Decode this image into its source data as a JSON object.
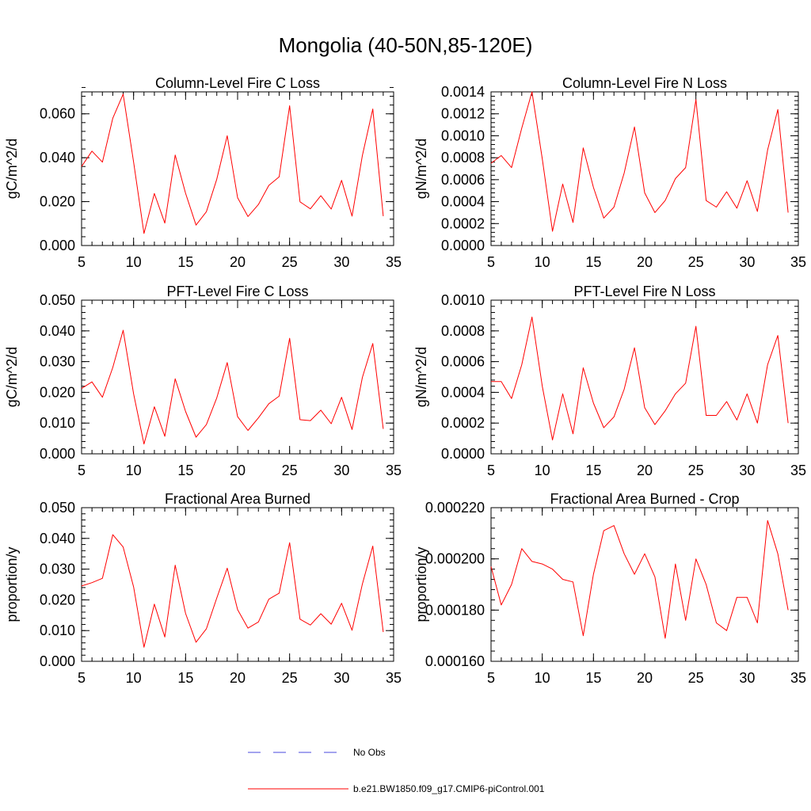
{
  "figure": {
    "title": "Mongolia (40-50N,85-120E)",
    "colors": {
      "series": "#ff0000",
      "obs": "#4a4adf",
      "axis": "#000000"
    }
  },
  "legend": {
    "items": [
      {
        "label": "No Obs",
        "style": "dashed",
        "color": "#4a4adf"
      },
      {
        "label": "b.e21.BW1850.f09_g17.CMIP6-piControl.001",
        "style": "solid",
        "color": "#ff0000"
      }
    ]
  },
  "chart_data": [
    {
      "type": "line",
      "title": "Column-Level Fire C Loss",
      "ylabel": "gC/m^2/d",
      "xlim": [
        5,
        35
      ],
      "ylim": [
        0,
        0.07
      ],
      "xticks": [
        5,
        10,
        15,
        20,
        25,
        30,
        35
      ],
      "xtick_labels": [
        "5",
        "10",
        "15",
        "20",
        "25",
        "30",
        "35"
      ],
      "yticks": [
        0,
        0.02,
        0.04,
        0.06
      ],
      "ytick_labels": [
        "0.000",
        "0.020",
        "0.040",
        "0.060"
      ],
      "y_minor_step": 0.004,
      "x": [
        5,
        6,
        7,
        8,
        9,
        10,
        11,
        12,
        13,
        14,
        15,
        16,
        17,
        18,
        19,
        20,
        21,
        22,
        23,
        24,
        25,
        26,
        27,
        28,
        29,
        30,
        31,
        32,
        33,
        34
      ],
      "series": [
        {
          "values": [
            0.036,
            0.043,
            0.038,
            0.058,
            0.069,
            0.038,
            0.0055,
            0.0237,
            0.0102,
            0.0412,
            0.0238,
            0.0093,
            0.0154,
            0.0302,
            0.05,
            0.0218,
            0.0132,
            0.0187,
            0.0274,
            0.0313,
            0.0637,
            0.0199,
            0.0167,
            0.0227,
            0.0166,
            0.0297,
            0.0134,
            0.0411,
            0.0622,
            0.0134
          ]
        }
      ]
    },
    {
      "type": "line",
      "title": "Column-Level Fire N Loss",
      "ylabel": "gN/m^2/d",
      "xlim": [
        5,
        35
      ],
      "ylim": [
        0,
        0.0014
      ],
      "xticks": [
        5,
        10,
        15,
        20,
        25,
        30,
        35
      ],
      "xtick_labels": [
        "5",
        "10",
        "15",
        "20",
        "25",
        "30",
        "35"
      ],
      "yticks": [
        0,
        0.0002,
        0.0004,
        0.0006,
        0.0008,
        0.001,
        0.0012,
        0.0014
      ],
      "ytick_labels": [
        "0.0000",
        "0.0002",
        "0.0004",
        "0.0006",
        "0.0008",
        "0.0010",
        "0.0012",
        "0.0014"
      ],
      "y_minor_step": 4e-05,
      "x": [
        5,
        6,
        7,
        8,
        9,
        10,
        11,
        12,
        13,
        14,
        15,
        16,
        17,
        18,
        19,
        20,
        21,
        22,
        23,
        24,
        25,
        26,
        27,
        28,
        29,
        30,
        31,
        32,
        33,
        34
      ],
      "series": [
        {
          "values": [
            0.00075,
            0.00082,
            0.00071,
            0.00107,
            0.0014,
            0.00079,
            0.00013,
            0.00056,
            0.00021,
            0.00089,
            0.00053,
            0.00025,
            0.00035,
            0.00066,
            0.00108,
            0.00048,
            0.0003,
            0.00041,
            0.00061,
            0.00071,
            0.00133,
            0.00041,
            0.00035,
            0.00049,
            0.00034,
            0.00059,
            0.00031,
            0.00087,
            0.00124,
            0.0003
          ]
        }
      ]
    },
    {
      "type": "line",
      "title": "PFT-Level Fire C Loss",
      "ylabel": "gC/m^2/d",
      "xlim": [
        5,
        35
      ],
      "ylim": [
        0,
        0.05
      ],
      "xticks": [
        5,
        10,
        15,
        20,
        25,
        30,
        35
      ],
      "xtick_labels": [
        "5",
        "10",
        "15",
        "20",
        "25",
        "30",
        "35"
      ],
      "yticks": [
        0,
        0.01,
        0.02,
        0.03,
        0.04,
        0.05
      ],
      "ytick_labels": [
        "0.000",
        "0.010",
        "0.020",
        "0.030",
        "0.040",
        "0.050"
      ],
      "y_minor_step": 0.002,
      "x": [
        5,
        6,
        7,
        8,
        9,
        10,
        11,
        12,
        13,
        14,
        15,
        16,
        17,
        18,
        19,
        20,
        21,
        22,
        23,
        24,
        25,
        26,
        27,
        28,
        29,
        30,
        31,
        32,
        33,
        34
      ],
      "series": [
        {
          "values": [
            0.0213,
            0.0234,
            0.0184,
            0.0281,
            0.0402,
            0.0195,
            0.0032,
            0.0153,
            0.0057,
            0.0244,
            0.0138,
            0.0054,
            0.0095,
            0.0182,
            0.0297,
            0.0121,
            0.0076,
            0.0117,
            0.0163,
            0.0188,
            0.0376,
            0.0111,
            0.0108,
            0.0142,
            0.0098,
            0.0184,
            0.0079,
            0.0249,
            0.0359,
            0.0081
          ]
        }
      ]
    },
    {
      "type": "line",
      "title": "PFT-Level Fire N Loss",
      "ylabel": "gN/m^2/d",
      "xlim": [
        5,
        35
      ],
      "ylim": [
        0,
        0.001
      ],
      "xticks": [
        5,
        10,
        15,
        20,
        25,
        30,
        35
      ],
      "xtick_labels": [
        "5",
        "10",
        "15",
        "20",
        "25",
        "30",
        "35"
      ],
      "yticks": [
        0,
        0.0002,
        0.0004,
        0.0006,
        0.0008,
        0.001
      ],
      "ytick_labels": [
        "0.0000",
        "0.0002",
        "0.0004",
        "0.0006",
        "0.0008",
        "0.0010"
      ],
      "y_minor_step": 4e-05,
      "x": [
        5,
        6,
        7,
        8,
        9,
        10,
        11,
        12,
        13,
        14,
        15,
        16,
        17,
        18,
        19,
        20,
        21,
        22,
        23,
        24,
        25,
        26,
        27,
        28,
        29,
        30,
        31,
        32,
        33,
        34
      ],
      "series": [
        {
          "values": [
            0.00047,
            0.00047,
            0.00036,
            0.00058,
            0.00089,
            0.00044,
            9e-05,
            0.00039,
            0.00013,
            0.00056,
            0.00033,
            0.00017,
            0.00024,
            0.00042,
            0.00069,
            0.0003,
            0.00019,
            0.00028,
            0.00039,
            0.00046,
            0.00083,
            0.00025,
            0.00025,
            0.00034,
            0.00022,
            0.00039,
            0.0002,
            0.00058,
            0.00077,
            0.0002
          ]
        }
      ]
    },
    {
      "type": "line",
      "title": "Fractional Area Burned",
      "ylabel": "proportion/y",
      "xlim": [
        5,
        35
      ],
      "ylim": [
        0,
        0.05
      ],
      "xticks": [
        5,
        10,
        15,
        20,
        25,
        30,
        35
      ],
      "xtick_labels": [
        "5",
        "10",
        "15",
        "20",
        "25",
        "30",
        "35"
      ],
      "yticks": [
        0,
        0.01,
        0.02,
        0.03,
        0.04,
        0.05
      ],
      "ytick_labels": [
        "0.000",
        "0.010",
        "0.020",
        "0.030",
        "0.040",
        "0.050"
      ],
      "y_minor_step": 0.002,
      "x": [
        5,
        6,
        7,
        8,
        9,
        10,
        11,
        12,
        13,
        14,
        15,
        16,
        17,
        18,
        19,
        20,
        21,
        22,
        23,
        24,
        25,
        26,
        27,
        28,
        29,
        30,
        31,
        32,
        33,
        34
      ],
      "series": [
        {
          "values": [
            0.0245,
            0.0256,
            0.027,
            0.0412,
            0.0372,
            0.0242,
            0.0046,
            0.0186,
            0.0079,
            0.0313,
            0.0156,
            0.0062,
            0.0106,
            0.0206,
            0.0303,
            0.0168,
            0.0108,
            0.0128,
            0.0202,
            0.0222,
            0.0386,
            0.0137,
            0.0118,
            0.0155,
            0.0121,
            0.0189,
            0.0101,
            0.0252,
            0.0375,
            0.0095
          ]
        }
      ]
    },
    {
      "type": "line",
      "title": "Fractional Area Burned - Crop",
      "ylabel": "proportion/y",
      "xlim": [
        5,
        35
      ],
      "ylim": [
        0.00016,
        0.00022
      ],
      "xticks": [
        5,
        10,
        15,
        20,
        25,
        30,
        35
      ],
      "xtick_labels": [
        "5",
        "10",
        "15",
        "20",
        "25",
        "30",
        "35"
      ],
      "yticks": [
        0.00016,
        0.00018,
        0.0002,
        0.00022
      ],
      "ytick_labels": [
        "0.000160",
        "0.000180",
        "0.000200",
        "0.000220"
      ],
      "y_minor_step": 4e-06,
      "x": [
        5,
        6,
        7,
        8,
        9,
        10,
        11,
        12,
        13,
        14,
        15,
        16,
        17,
        18,
        19,
        20,
        21,
        22,
        23,
        24,
        25,
        26,
        27,
        28,
        29,
        30,
        31,
        32,
        33,
        34
      ],
      "series": [
        {
          "values": [
            0.000197,
            0.000182,
            0.00019,
            0.000204,
            0.000199,
            0.000198,
            0.000196,
            0.000192,
            0.000191,
            0.00017,
            0.000194,
            0.000211,
            0.000213,
            0.000202,
            0.000194,
            0.000202,
            0.000193,
            0.000169,
            0.000198,
            0.000176,
            0.0002,
            0.00019,
            0.000175,
            0.000172,
            0.000185,
            0.000185,
            0.000175,
            0.000215,
            0.000202,
            0.00018
          ]
        }
      ]
    }
  ]
}
